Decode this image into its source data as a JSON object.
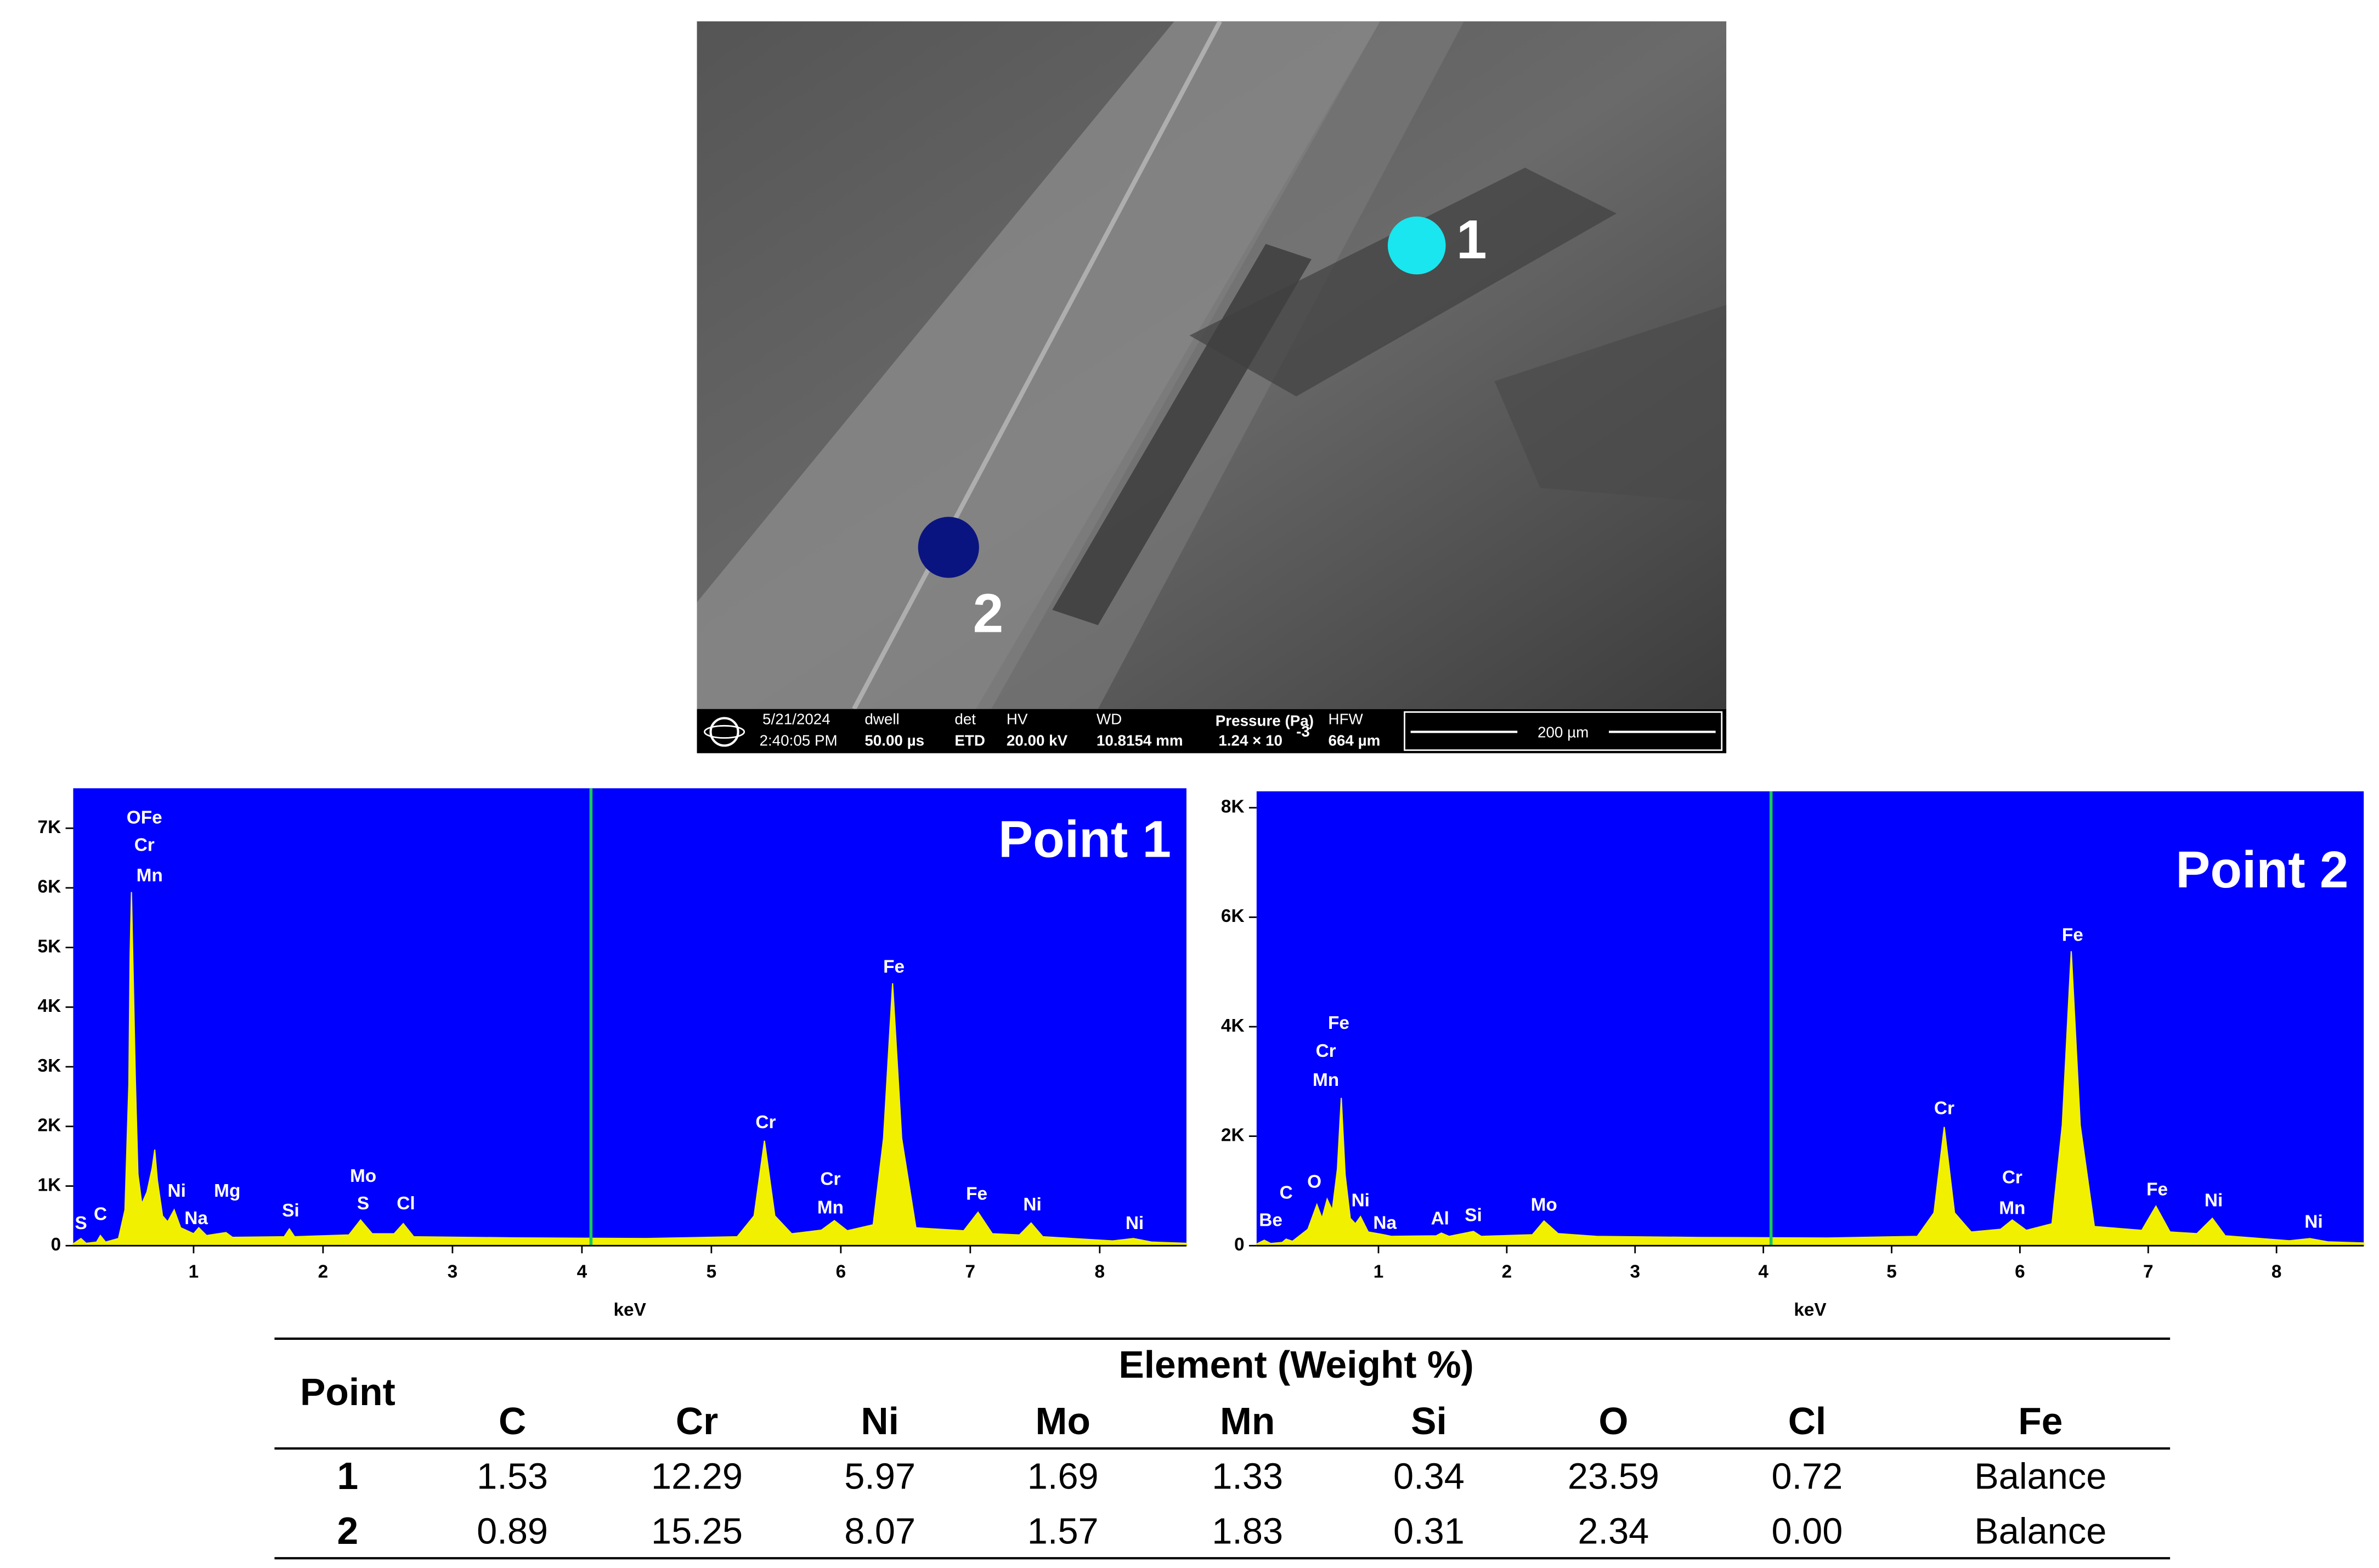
{
  "sem": {
    "points": [
      {
        "label": "1",
        "color": "#19e6ef"
      },
      {
        "label": "2",
        "color": "#0a1480"
      }
    ],
    "info": {
      "date": "5/21/2024",
      "time": "2:40:05 PM",
      "dwell_label": "dwell",
      "dwell": "50.00 µs",
      "det_label": "det",
      "det": "ETD",
      "hv_label": "HV",
      "hv": "20.00 kV",
      "wd_label": "WD",
      "wd": "10.8154 mm",
      "pressure_label": "Pressure (Pa)",
      "pressure": "1.24 × 10",
      "pressure_exp": "-3",
      "hfw_label": "HFW",
      "hfw": "664 µm",
      "scale": "200 µm"
    }
  },
  "chart_data": [
    {
      "type": "area",
      "title": "Point 1",
      "x_label": "keV",
      "background": "#0000ff",
      "xlim": [
        0.07,
        8.67
      ],
      "xticks": [
        1,
        2,
        3,
        4,
        5,
        6,
        7,
        8
      ],
      "ylim": [
        0,
        7670
      ],
      "yticks": [
        0,
        {
          "value": 1000,
          "label": "1K"
        },
        {
          "value": 2000,
          "label": "2K"
        },
        {
          "value": 3000,
          "label": "3K"
        },
        {
          "value": 4000,
          "label": "4K"
        },
        {
          "value": 5000,
          "label": "5K"
        },
        {
          "value": 6000,
          "label": "6K"
        },
        {
          "value": 7000,
          "label": "7K"
        }
      ],
      "cursor_x": 4.07,
      "cursor_color": "#19c85a",
      "series": [
        {
          "color": "#f0f000",
          "x": [
            0.07,
            0.13,
            0.17,
            0.25,
            0.28,
            0.32,
            0.42,
            0.47,
            0.5,
            0.51,
            0.52,
            0.53,
            0.55,
            0.57,
            0.6,
            0.64,
            0.68,
            0.7,
            0.72,
            0.76,
            0.8,
            0.85,
            0.9,
            1.0,
            1.04,
            1.1,
            1.25,
            1.3,
            1.7,
            1.74,
            1.78,
            2.2,
            2.29,
            2.38,
            2.55,
            2.62,
            2.7,
            3.5,
            4.5,
            5.2,
            5.33,
            5.41,
            5.49,
            5.62,
            5.85,
            5.95,
            6.05,
            6.25,
            6.33,
            6.4,
            6.47,
            6.58,
            6.95,
            7.06,
            7.17,
            7.38,
            7.47,
            7.56,
            8.1,
            8.26,
            8.4,
            8.67
          ],
          "values": [
            30,
            120,
            40,
            60,
            170,
            60,
            120,
            600,
            2700,
            4880,
            5930,
            4880,
            2790,
            1200,
            700,
            900,
            1300,
            1610,
            1100,
            500,
            400,
            600,
            300,
            200,
            300,
            170,
            220,
            140,
            150,
            280,
            150,
            180,
            430,
            200,
            200,
            370,
            150,
            130,
            120,
            150,
            500,
            1760,
            500,
            200,
            260,
            420,
            250,
            350,
            1800,
            4400,
            1800,
            300,
            250,
            560,
            200,
            180,
            380,
            150,
            80,
            120,
            60,
            40
          ]
        }
      ],
      "annotations": [
        {
          "text": "OFe",
          "x": 0.62,
          "y": 7080
        },
        {
          "text": "Cr",
          "x": 0.62,
          "y": 6620
        },
        {
          "text": "Mn",
          "x": 0.66,
          "y": 6110
        },
        {
          "text": "S",
          "x": 0.13,
          "y": 280
        },
        {
          "text": "C",
          "x": 0.28,
          "y": 430
        },
        {
          "text": "Ni",
          "x": 0.87,
          "y": 820
        },
        {
          "text": "Na",
          "x": 1.02,
          "y": 360
        },
        {
          "text": "Mg",
          "x": 1.26,
          "y": 820
        },
        {
          "text": "Si",
          "x": 1.75,
          "y": 490
        },
        {
          "text": "Mo",
          "x": 2.31,
          "y": 1070
        },
        {
          "text": "S",
          "x": 2.31,
          "y": 610
        },
        {
          "text": "Cl",
          "x": 2.64,
          "y": 610
        },
        {
          "text": "Cr",
          "x": 5.42,
          "y": 1970
        },
        {
          "text": "Fe",
          "x": 6.41,
          "y": 4580
        },
        {
          "text": "Cr",
          "x": 5.92,
          "y": 1020
        },
        {
          "text": "Mn",
          "x": 5.92,
          "y": 540
        },
        {
          "text": "Fe",
          "x": 7.05,
          "y": 770
        },
        {
          "text": "Ni",
          "x": 7.48,
          "y": 590
        },
        {
          "text": "Ni",
          "x": 8.27,
          "y": 280
        }
      ]
    },
    {
      "type": "area",
      "title": "Point 2",
      "x_label": "keV",
      "background": "#0000ff",
      "xlim": [
        0.05,
        8.68
      ],
      "xticks": [
        1,
        2,
        3,
        4,
        5,
        6,
        7,
        8
      ],
      "ylim": [
        0,
        8300
      ],
      "yticks": [
        0,
        {
          "value": 2000,
          "label": "2K"
        },
        {
          "value": 4000,
          "label": "4K"
        },
        {
          "value": 6000,
          "label": "6K"
        },
        {
          "value": 8000,
          "label": "8K"
        }
      ],
      "cursor_x": 4.06,
      "cursor_color": "#19c85a",
      "series": [
        {
          "color": "#f0f000",
          "x": [
            0.05,
            0.11,
            0.16,
            0.25,
            0.28,
            0.33,
            0.45,
            0.52,
            0.56,
            0.6,
            0.64,
            0.68,
            0.71,
            0.74,
            0.78,
            0.82,
            0.86,
            0.92,
            1.04,
            1.1,
            1.45,
            1.49,
            1.55,
            1.74,
            1.8,
            2.2,
            2.29,
            2.4,
            2.7,
            3.5,
            4.5,
            5.2,
            5.33,
            5.41,
            5.49,
            5.62,
            5.85,
            5.94,
            6.05,
            6.25,
            6.33,
            6.4,
            6.47,
            6.58,
            6.95,
            7.06,
            7.17,
            7.38,
            7.5,
            7.6,
            8.1,
            8.26,
            8.4,
            8.68
          ],
          "values": [
            30,
            100,
            40,
            60,
            120,
            80,
            300,
            750,
            500,
            850,
            650,
            1400,
            2700,
            1300,
            500,
            400,
            530,
            250,
            200,
            170,
            180,
            230,
            170,
            260,
            170,
            200,
            450,
            220,
            170,
            150,
            140,
            170,
            600,
            2170,
            600,
            250,
            300,
            470,
            280,
            400,
            2200,
            5380,
            2200,
            350,
            280,
            720,
            250,
            220,
            500,
            180,
            90,
            130,
            70,
            50
          ]
        }
      ],
      "annotations": [
        {
          "text": "Be",
          "x": 0.16,
          "y": 360
        },
        {
          "text": "C",
          "x": 0.28,
          "y": 860
        },
        {
          "text": "O",
          "x": 0.5,
          "y": 1060
        },
        {
          "text": "Fe",
          "x": 0.69,
          "y": 3960
        },
        {
          "text": "Cr",
          "x": 0.59,
          "y": 3450
        },
        {
          "text": "Mn",
          "x": 0.59,
          "y": 2920
        },
        {
          "text": "Ni",
          "x": 0.86,
          "y": 720
        },
        {
          "text": "Na",
          "x": 1.05,
          "y": 310
        },
        {
          "text": "Al",
          "x": 1.48,
          "y": 390
        },
        {
          "text": "Si",
          "x": 1.74,
          "y": 450
        },
        {
          "text": "Mo",
          "x": 2.29,
          "y": 640
        },
        {
          "text": "Cr",
          "x": 5.41,
          "y": 2400
        },
        {
          "text": "Fe",
          "x": 6.41,
          "y": 5570
        },
        {
          "text": "Cr",
          "x": 5.94,
          "y": 1140
        },
        {
          "text": "Mn",
          "x": 5.94,
          "y": 580
        },
        {
          "text": "Fe",
          "x": 7.07,
          "y": 920
        },
        {
          "text": "Ni",
          "x": 7.51,
          "y": 720
        },
        {
          "text": "Ni",
          "x": 8.29,
          "y": 330
        }
      ]
    }
  ],
  "table": {
    "point_header": "Point",
    "group_header": "Element (Weight %)",
    "columns": [
      "C",
      "Cr",
      "Ni",
      "Mo",
      "Mn",
      "Si",
      "O",
      "Cl",
      "Fe"
    ],
    "rows": [
      [
        "1",
        "1.53",
        "12.29",
        "5.97",
        "1.69",
        "1.33",
        "0.34",
        "23.59",
        "0.72",
        "Balance"
      ],
      [
        "2",
        "0.89",
        "15.25",
        "8.07",
        "1.57",
        "1.83",
        "0.31",
        "2.34",
        "0.00",
        "Balance"
      ]
    ]
  }
}
